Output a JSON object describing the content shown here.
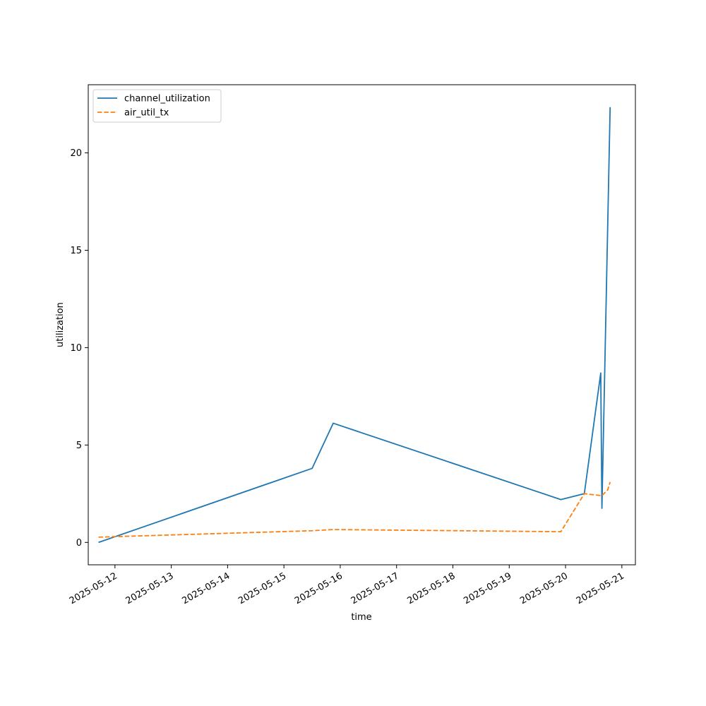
{
  "chart_data": {
    "type": "line",
    "title": "",
    "xlabel": "time",
    "ylabel": "utilization",
    "x_type": "datetime",
    "xlim": [
      "2025-05-11T12:37",
      "2025-05-21T05:46"
    ],
    "ylim": [
      -1.15,
      23.5
    ],
    "x_ticks": [
      "2025-05-12",
      "2025-05-13",
      "2025-05-14",
      "2025-05-15",
      "2025-05-16",
      "2025-05-17",
      "2025-05-18",
      "2025-05-19",
      "2025-05-20",
      "2025-05-21"
    ],
    "y_ticks": [
      0,
      5,
      10,
      15,
      20
    ],
    "grid": false,
    "legend_position": "upper-left",
    "series": [
      {
        "name": "channel_utilization",
        "color": "#1f77b4",
        "style": "solid",
        "points": [
          [
            "2025-05-11T17:00",
            0.0
          ],
          [
            "2025-05-15T12:00",
            3.8
          ],
          [
            "2025-05-15T21:00",
            6.12
          ],
          [
            "2025-05-19T22:00",
            2.2
          ],
          [
            "2025-05-20T08:00",
            2.5
          ],
          [
            "2025-05-20T15:00",
            8.7
          ],
          [
            "2025-05-20T15:30",
            1.75
          ],
          [
            "2025-05-20T19:00",
            22.35
          ]
        ]
      },
      {
        "name": "air_util_tx",
        "color": "#ff7f0e",
        "style": "dashed",
        "points": [
          [
            "2025-05-11T17:00",
            0.27
          ],
          [
            "2025-05-15T12:00",
            0.6
          ],
          [
            "2025-05-15T21:00",
            0.66
          ],
          [
            "2025-05-19T22:00",
            0.55
          ],
          [
            "2025-05-20T08:00",
            2.5
          ],
          [
            "2025-05-20T15:30",
            2.4
          ],
          [
            "2025-05-20T18:00",
            2.7
          ],
          [
            "2025-05-20T19:00",
            3.1
          ]
        ]
      }
    ]
  }
}
